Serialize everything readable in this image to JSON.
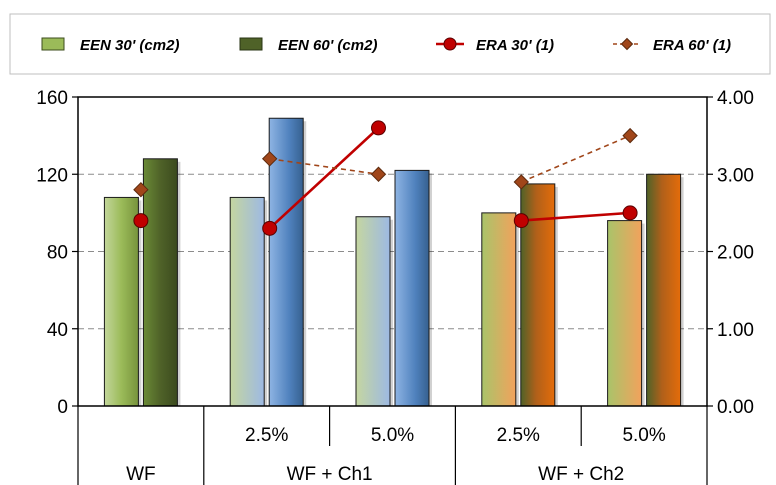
{
  "chart_data": {
    "type": "bar",
    "title": "",
    "xlabel": "",
    "ylabel": "",
    "y2label": "",
    "ylim": [
      0,
      160
    ],
    "y2lim": [
      0,
      4
    ],
    "yticks": [
      "0",
      "40",
      "80",
      "120",
      "160"
    ],
    "y2ticks": [
      "0.00",
      "1.00",
      "2.00",
      "3.00",
      "4.00"
    ],
    "grid": true,
    "legend_position": "top",
    "categories": [
      {
        "group": "WF",
        "sub": ""
      },
      {
        "group": "WF + Ch1",
        "sub": "2.5%"
      },
      {
        "group": "WF + Ch1",
        "sub": "5.0%"
      },
      {
        "group": "WF + Ch2",
        "sub": "2.5%"
      },
      {
        "group": "WF + Ch2",
        "sub": "5.0%"
      }
    ],
    "group_labels": [
      "WF",
      "WF + Ch1",
      "WF + Ch2"
    ],
    "sub_labels": [
      "",
      "2.5%",
      "5.0%",
      "2.5%",
      "5.0%"
    ],
    "series": [
      {
        "name": "EEN 30' (cm2)",
        "type": "bar",
        "axis": "left",
        "values": [
          108,
          108,
          98,
          100,
          96
        ]
      },
      {
        "name": "EEN 60' (cm2)",
        "type": "bar",
        "axis": "left",
        "values": [
          128,
          149,
          122,
          115,
          120
        ]
      },
      {
        "name": "ERA 30' (1)",
        "type": "line",
        "axis": "right",
        "segments": [
          [
            1,
            2
          ],
          [
            3,
            4
          ]
        ],
        "values": [
          2.4,
          2.3,
          3.6,
          2.4,
          2.5
        ]
      },
      {
        "name": "ERA 60' (1)",
        "type": "line-dashed",
        "axis": "right",
        "segments": [
          [
            1,
            2
          ],
          [
            3,
            4
          ]
        ],
        "values": [
          2.8,
          3.2,
          3.0,
          2.9,
          3.5
        ]
      }
    ],
    "colors": {
      "een30_wf": "#9bbb59",
      "een60_wf": "#4f6228",
      "ch1_light": "#b9cde5",
      "ch1_dark": "#4f81bd",
      "ch2_green": "#9bbb59",
      "ch2_orange": "#e46c0a",
      "era30": "#c00000",
      "era60": "#a0461a"
    }
  }
}
